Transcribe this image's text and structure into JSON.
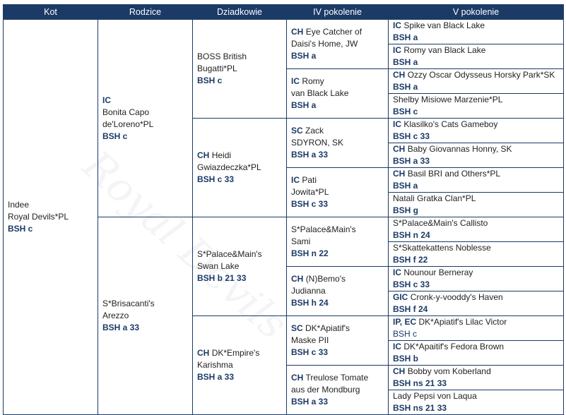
{
  "headers": [
    "Kot",
    "Rodzice",
    "Dziadkowie",
    "IV pokolenie",
    "V pokolenie"
  ],
  "watermark": "Royal Devils",
  "cat": {
    "lines": [
      "Indee",
      "Royal Devils*PL"
    ],
    "code": "BSH c"
  },
  "parents": [
    {
      "title": "IC",
      "lines": [
        "Bonita Capo",
        "de'Loreno*PL"
      ],
      "code": "BSH c"
    },
    {
      "title": "",
      "lines": [
        "S*Brisacanti's",
        "Arezzo"
      ],
      "code": "BSH a 33"
    }
  ],
  "grandparents": [
    {
      "title": "",
      "lines": [
        "BOSS British",
        "Bugatti*PL"
      ],
      "code": "BSH c"
    },
    {
      "title": "CH",
      "lines": [
        "Heidi",
        "Gwiazdeczka*PL"
      ],
      "code": "BSH c 33"
    },
    {
      "title": "",
      "lines": [
        "S*Palace&Main's",
        "Swan Lake"
      ],
      "code": "BSH b 21 33"
    },
    {
      "title": "CH",
      "lines": [
        "DK*Empire's",
        "Karishma"
      ],
      "code": "BSH a 33"
    }
  ],
  "gen4": [
    {
      "title": "CH",
      "lines": [
        "Eye Catcher of",
        "Daisi's Home, JW"
      ],
      "code": "BSH a"
    },
    {
      "title": "IC",
      "lines": [
        "Romy",
        "van Black Lake"
      ],
      "code": "BSH a"
    },
    {
      "title": "SC",
      "lines": [
        "Zack",
        "SDYRON, SK"
      ],
      "code": "BSH a 33"
    },
    {
      "title": "IC",
      "lines": [
        "Pati",
        "Jowita*PL"
      ],
      "code": "BSH c 33"
    },
    {
      "title": "",
      "lines": [
        "S*Palace&Main's",
        "Sami"
      ],
      "code": "BSH n 22"
    },
    {
      "title": "CH",
      "lines": [
        "(N)Bemo's",
        "Judianna"
      ],
      "code": "BSH h 24"
    },
    {
      "title": "SC",
      "lines": [
        "DK*Apiatif's",
        "Maske PII"
      ],
      "code": "BSH c 33"
    },
    {
      "title": "CH",
      "lines": [
        "Treulose Tomate",
        "aus der Mondburg"
      ],
      "code": "BSH a 33"
    }
  ],
  "gen5": [
    {
      "title": "IC",
      "name": "Spike van Black Lake",
      "code": "BSH a"
    },
    {
      "title": "IC",
      "name": "Romy van Black Lake",
      "code": "BSH a"
    },
    {
      "title": "CH",
      "name": "Ozzy Oscar Odysseus Horsky Park*SK",
      "code": "BSH a"
    },
    {
      "title": "",
      "name": "Shelby Misiowe Marzenie*PL",
      "code": "BSH c"
    },
    {
      "title": "IC",
      "name": "Klasilko's Cats Gameboy",
      "code": "BSH c 33"
    },
    {
      "title": "CH",
      "name": "Baby Giovannas Honny, SK",
      "code": "BSH a 33"
    },
    {
      "title": "CH",
      "name": "Basil BRI and Others*PL",
      "code": "BSH a"
    },
    {
      "title": "",
      "name": "Natali Gratka Clan*PL",
      "code": "BSH g"
    },
    {
      "title": "",
      "name": "S*Palace&Main's Callisto",
      "code": "BSH n 24"
    },
    {
      "title": "",
      "name": "S*Skattekattens Noblesse",
      "code": "BSH f 22"
    },
    {
      "title": "IC",
      "name": "Nounour Berneray",
      "code": "BSH c 33"
    },
    {
      "title": "GIC",
      "name": "Cronk-y-vooddy's Haven",
      "code": "BSH f 24"
    },
    {
      "title": "IP, EC",
      "name": "DK*Apiatif's Lilac Victor",
      "code": "BSH c"
    },
    {
      "title": "IC",
      "name": "DK*Apaitif's Fedora Brown",
      "code": "BSH b"
    },
    {
      "title": "CH",
      "name": "Bobby vom Koberland",
      "code": "BSH ns 21 33"
    },
    {
      "title": "",
      "name": "Lady Pepsi von Laqua",
      "code": "BSH ns 21 33"
    }
  ]
}
